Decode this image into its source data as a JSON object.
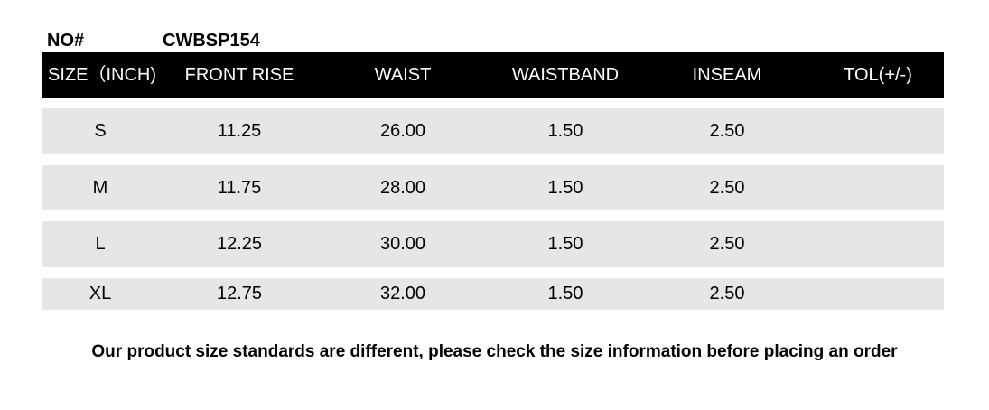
{
  "header": {
    "no_label": "NO#",
    "model": "CWBSP154"
  },
  "columns": [
    "SIZE（INCH)",
    "FRONT RISE",
    "WAIST",
    "WAISTBAND",
    "INSEAM",
    "TOL(+/-)"
  ],
  "rows": [
    [
      "S",
      "11.25",
      "26.00",
      "1.50",
      "2.50",
      ""
    ],
    [
      "M",
      "11.75",
      "28.00",
      "1.50",
      "2.50",
      ""
    ],
    [
      "L",
      "12.25",
      "30.00",
      "1.50",
      "2.50",
      ""
    ],
    [
      "XL",
      "12.75",
      "32.00",
      "1.50",
      "2.50",
      ""
    ]
  ],
  "note": "Our product size standards are different, please check the size information before placing an order",
  "colors": {
    "header_bg": "#000000",
    "row_bg": "#e6e6e6"
  }
}
